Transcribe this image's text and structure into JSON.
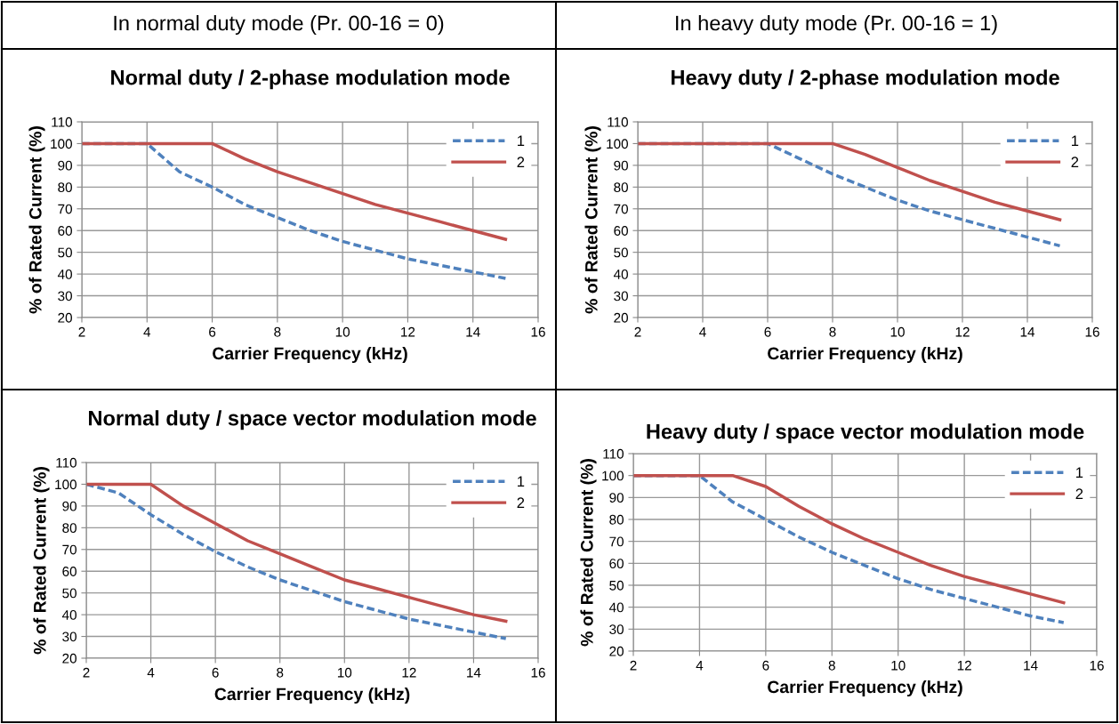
{
  "chart_data": [
    {
      "type": "line",
      "annotations": [
        "In normal duty mode (Pr. 00-16 = 0)"
      ],
      "title": "Normal duty / 2-phase modulation mode",
      "xlabel": "Carrier Frequency (kHz)",
      "ylabel": "% of Rated Current (%)",
      "xlim": [
        2,
        16
      ],
      "xticks": [
        2,
        4,
        6,
        8,
        10,
        12,
        14,
        16
      ],
      "ylim": [
        20,
        110
      ],
      "yticks": [
        20,
        30,
        40,
        50,
        60,
        70,
        80,
        90,
        100,
        110
      ],
      "grid": true,
      "legend": "top right",
      "series": [
        {
          "name": "1",
          "color": "#4f81bd",
          "line_style": "dashed",
          "x": [
            2,
            4,
            5,
            6,
            7,
            8,
            9,
            10,
            11,
            12,
            13,
            14,
            15
          ],
          "values": [
            100,
            100,
            87,
            80,
            72,
            66,
            60,
            55,
            51,
            47,
            44,
            41,
            38
          ]
        },
        {
          "name": "2",
          "color": "#c0504d",
          "line_style": "solid",
          "x": [
            2,
            6,
            7,
            8,
            9,
            10,
            11,
            12,
            13,
            14,
            15
          ],
          "values": [
            100,
            100,
            93,
            87,
            82,
            77,
            72,
            68,
            64,
            60,
            56
          ]
        }
      ]
    },
    {
      "type": "line",
      "annotations": [
        "In heavy duty mode (Pr. 00-16 = 1)"
      ],
      "title": "Heavy duty / 2-phase modulation mode",
      "xlabel": "Carrier Frequency (kHz)",
      "ylabel": "% of Rated Current (%)",
      "xlim": [
        2,
        16
      ],
      "xticks": [
        2,
        4,
        6,
        8,
        10,
        12,
        14,
        16
      ],
      "ylim": [
        20,
        110
      ],
      "yticks": [
        20,
        30,
        40,
        50,
        60,
        70,
        80,
        90,
        100,
        110
      ],
      "grid": true,
      "legend": "top right",
      "series": [
        {
          "name": "1",
          "color": "#4f81bd",
          "line_style": "dashed",
          "x": [
            2,
            6,
            7,
            8,
            9,
            10,
            11,
            12,
            13,
            14,
            15
          ],
          "values": [
            100,
            100,
            93,
            86,
            80,
            74,
            69,
            65,
            61,
            57,
            53
          ]
        },
        {
          "name": "2",
          "color": "#c0504d",
          "line_style": "solid",
          "x": [
            2,
            8,
            9,
            10,
            11,
            12,
            13,
            14,
            15
          ],
          "values": [
            100,
            100,
            95,
            89,
            83,
            78,
            73,
            69,
            65
          ]
        }
      ]
    },
    {
      "type": "line",
      "title": "Normal duty / space vector modulation mode",
      "xlabel": "Carrier Frequency (kHz)",
      "ylabel": "% of Rated Current (%)",
      "xlim": [
        2,
        16
      ],
      "xticks": [
        2,
        4,
        6,
        8,
        10,
        12,
        14,
        16
      ],
      "ylim": [
        20,
        110
      ],
      "yticks": [
        20,
        30,
        40,
        50,
        60,
        70,
        80,
        90,
        100,
        110
      ],
      "grid": true,
      "legend": "top right",
      "series": [
        {
          "name": "1",
          "color": "#4f81bd",
          "line_style": "dashed",
          "x": [
            2,
            3,
            4,
            5,
            6,
            7,
            8,
            9,
            10,
            11,
            12,
            13,
            14,
            15
          ],
          "values": [
            100,
            96,
            86,
            77,
            69,
            62,
            56,
            51,
            46,
            42,
            38,
            35,
            32,
            29
          ]
        },
        {
          "name": "2",
          "color": "#c0504d",
          "line_style": "solid",
          "x": [
            2,
            4,
            5,
            6,
            7,
            8,
            9,
            10,
            11,
            12,
            13,
            14,
            15
          ],
          "values": [
            100,
            100,
            90,
            82,
            74,
            68,
            62,
            56,
            52,
            48,
            44,
            40,
            37
          ]
        }
      ]
    },
    {
      "type": "line",
      "title": "Heavy duty / space vector modulation mode",
      "xlabel": "Carrier Frequency (kHz)",
      "ylabel": "% of Rated Current (%)",
      "xlim": [
        2,
        16
      ],
      "xticks": [
        2,
        4,
        6,
        8,
        10,
        12,
        14,
        16
      ],
      "ylim": [
        20,
        110
      ],
      "yticks": [
        20,
        30,
        40,
        50,
        60,
        70,
        80,
        90,
        100,
        110
      ],
      "grid": true,
      "legend": "top right",
      "series": [
        {
          "name": "1",
          "color": "#4f81bd",
          "line_style": "dashed",
          "x": [
            2,
            4,
            5,
            6,
            7,
            8,
            9,
            10,
            11,
            12,
            13,
            14,
            15
          ],
          "values": [
            100,
            100,
            88,
            80,
            72,
            65,
            59,
            53,
            48,
            44,
            40,
            36,
            33
          ]
        },
        {
          "name": "2",
          "color": "#c0504d",
          "line_style": "solid",
          "x": [
            2,
            5,
            6,
            7,
            8,
            9,
            10,
            11,
            12,
            13,
            14,
            15
          ],
          "values": [
            100,
            100,
            95,
            86,
            78,
            71,
            65,
            59,
            54,
            50,
            46,
            42
          ]
        }
      ]
    }
  ]
}
